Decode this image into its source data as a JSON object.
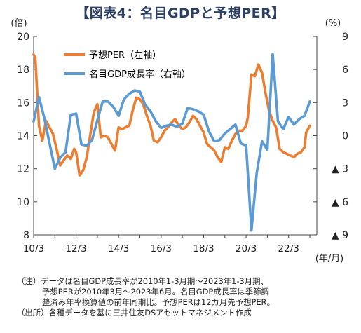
{
  "chart_data": {
    "type": "line",
    "title": "【図表4：名目GDPと予想PER】",
    "left_axis": {
      "unit": "(倍)",
      "ylim": [
        8,
        20
      ],
      "ticks": [
        "8",
        "10",
        "12",
        "14",
        "16",
        "18",
        "20"
      ]
    },
    "right_axis": {
      "unit": "(%)",
      "ylim": [
        -9,
        9
      ],
      "ticks": [
        "▲ 9",
        "▲ 6",
        "▲ 3",
        "0",
        "3",
        "6",
        "9"
      ]
    },
    "x_axis": {
      "unit": "(年/月)",
      "xlim": [
        2010.17,
        2023.5
      ],
      "tick_labels": [
        "10/3",
        "12/3",
        "14/3",
        "16/3",
        "18/3",
        "20/3",
        "22/3"
      ]
    },
    "grid": false,
    "legend": "top-left",
    "series": [
      {
        "name": "予想PER（左軸）",
        "axis": "left",
        "color": "#ed7d31",
        "points": [
          [
            2010.17,
            18.9
          ],
          [
            2010.25,
            18.7
          ],
          [
            2010.33,
            16.8
          ],
          [
            2010.42,
            14.6
          ],
          [
            2010.58,
            13.7
          ],
          [
            2010.75,
            14.9
          ],
          [
            2010.92,
            14.5
          ],
          [
            2011.08,
            14.1
          ],
          [
            2011.25,
            13.2
          ],
          [
            2011.42,
            12.2
          ],
          [
            2011.58,
            12.5
          ],
          [
            2011.75,
            12.8
          ],
          [
            2011.92,
            12.6
          ],
          [
            2012.08,
            13.2
          ],
          [
            2012.17,
            13.0
          ],
          [
            2012.33,
            11.6
          ],
          [
            2012.5,
            11.9
          ],
          [
            2012.67,
            12.7
          ],
          [
            2012.83,
            14.0
          ],
          [
            2013.0,
            15.4
          ],
          [
            2013.17,
            15.9
          ],
          [
            2013.33,
            13.9
          ],
          [
            2013.5,
            14.0
          ],
          [
            2013.67,
            13.9
          ],
          [
            2013.83,
            13.5
          ],
          [
            2014.0,
            13.1
          ],
          [
            2014.17,
            14.5
          ],
          [
            2014.33,
            14.4
          ],
          [
            2014.5,
            14.5
          ],
          [
            2014.67,
            14.6
          ],
          [
            2014.83,
            15.5
          ],
          [
            2015.0,
            16.3
          ],
          [
            2015.17,
            16.2
          ],
          [
            2015.33,
            15.9
          ],
          [
            2015.5,
            15.2
          ],
          [
            2015.67,
            14.6
          ],
          [
            2015.83,
            13.7
          ],
          [
            2016.0,
            13.6
          ],
          [
            2016.17,
            13.9
          ],
          [
            2016.33,
            14.3
          ],
          [
            2016.5,
            14.5
          ],
          [
            2016.67,
            14.8
          ],
          [
            2016.83,
            15.0
          ],
          [
            2017.0,
            14.6
          ],
          [
            2017.17,
            14.4
          ],
          [
            2017.33,
            14.5
          ],
          [
            2017.5,
            14.8
          ],
          [
            2017.67,
            15.2
          ],
          [
            2017.83,
            15.0
          ],
          [
            2018.0,
            14.6
          ],
          [
            2018.17,
            14.2
          ],
          [
            2018.33,
            13.5
          ],
          [
            2018.5,
            13.3
          ],
          [
            2018.67,
            13.1
          ],
          [
            2018.83,
            12.7
          ],
          [
            2019.0,
            12.4
          ],
          [
            2019.17,
            13.3
          ],
          [
            2019.33,
            13.2
          ],
          [
            2019.5,
            13.7
          ],
          [
            2019.67,
            14.1
          ],
          [
            2019.83,
            14.3
          ],
          [
            2020.0,
            14.3
          ],
          [
            2020.17,
            14.6
          ],
          [
            2020.25,
            15.1
          ],
          [
            2020.42,
            17.7
          ],
          [
            2020.58,
            17.6
          ],
          [
            2020.75,
            18.3
          ],
          [
            2020.92,
            17.8
          ],
          [
            2021.08,
            16.6
          ],
          [
            2021.25,
            15.5
          ],
          [
            2021.42,
            14.9
          ],
          [
            2021.58,
            14.5
          ],
          [
            2021.75,
            13.2
          ],
          [
            2021.92,
            13.0
          ],
          [
            2022.08,
            12.9
          ],
          [
            2022.25,
            12.8
          ],
          [
            2022.42,
            12.7
          ],
          [
            2022.58,
            12.9
          ],
          [
            2022.75,
            13.0
          ],
          [
            2022.92,
            13.3
          ],
          [
            2023.0,
            14.2
          ],
          [
            2023.17,
            14.6
          ]
        ]
      },
      {
        "name": "名目GDP成長率（右軸）",
        "axis": "right",
        "color": "#5b9bd5",
        "points": [
          [
            2010.17,
            1.3
          ],
          [
            2010.42,
            3.5
          ],
          [
            2010.67,
            1.6
          ],
          [
            2010.92,
            -0.7
          ],
          [
            2011.17,
            -3.0
          ],
          [
            2011.42,
            -2.0
          ],
          [
            2011.67,
            -1.5
          ],
          [
            2011.92,
            1.9
          ],
          [
            2012.17,
            2.0
          ],
          [
            2012.42,
            -0.8
          ],
          [
            2012.67,
            -0.9
          ],
          [
            2012.92,
            -0.4
          ],
          [
            2013.17,
            1.4
          ],
          [
            2013.42,
            3.1
          ],
          [
            2013.67,
            3.1
          ],
          [
            2013.92,
            2.6
          ],
          [
            2014.17,
            1.8
          ],
          [
            2014.42,
            3.3
          ],
          [
            2014.67,
            3.8
          ],
          [
            2014.92,
            4.1
          ],
          [
            2015.17,
            4.0
          ],
          [
            2015.42,
            2.8
          ],
          [
            2015.67,
            2.2
          ],
          [
            2015.92,
            1.3
          ],
          [
            2016.17,
            0.7
          ],
          [
            2016.42,
            0.9
          ],
          [
            2016.67,
            1.0
          ],
          [
            2016.92,
            0.8
          ],
          [
            2017.17,
            1.1
          ],
          [
            2017.42,
            2.5
          ],
          [
            2017.67,
            2.4
          ],
          [
            2017.92,
            2.2
          ],
          [
            2018.17,
            1.9
          ],
          [
            2018.42,
            0.4
          ],
          [
            2018.67,
            -0.5
          ],
          [
            2018.92,
            -0.4
          ],
          [
            2019.17,
            0.2
          ],
          [
            2019.42,
            0.6
          ],
          [
            2019.67,
            1.0
          ],
          [
            2019.92,
            -0.7
          ],
          [
            2020.17,
            -0.9
          ],
          [
            2020.42,
            -8.6
          ],
          [
            2020.67,
            -3.4
          ],
          [
            2020.92,
            -0.5
          ],
          [
            2021.17,
            -1.3
          ],
          [
            2021.42,
            7.4
          ],
          [
            2021.67,
            1.3
          ],
          [
            2021.92,
            0.6
          ],
          [
            2022.17,
            1.7
          ],
          [
            2022.42,
            1.0
          ],
          [
            2022.67,
            1.5
          ],
          [
            2022.92,
            1.8
          ],
          [
            2023.17,
            3.1
          ]
        ]
      }
    ]
  },
  "notes": [
    "（注）データは名目GDP成長率が2010年1-3月期～2023年1-3月期、",
    "予想PERが2010年3月～2023年6月。名目GDP成長率は季節調",
    "整済み年率換算値の前年同期比。予想PERは12カ月先予想PER。",
    "（出所）各種データを基に三井住友DSアセットマネジメント作成"
  ]
}
